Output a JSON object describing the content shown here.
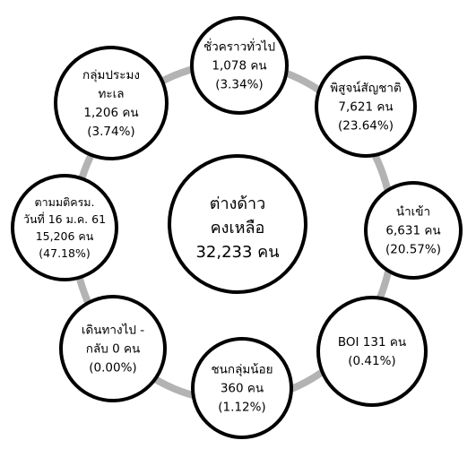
{
  "center": {
    "lines": [
      "ต่างด้าว",
      "คงเหลือ",
      "32,233 คน"
    ]
  },
  "nodes": [
    {
      "id": "temporary",
      "lines": [
        "ชั่วคราวทั่วไป",
        "1,078 คน",
        "(3.34%)"
      ]
    },
    {
      "id": "nationality-verification",
      "lines": [
        "พิสูจน์สัญชาติ",
        "7,621 คน",
        "(23.64%)"
      ]
    },
    {
      "id": "imported",
      "lines": [
        "นำเข้า",
        "6,631 คน",
        "(20.57%)"
      ]
    },
    {
      "id": "boi",
      "lines": [
        "BOI 131 คน",
        "(0.41%)"
      ]
    },
    {
      "id": "minority",
      "lines": [
        "ชนกลุ่มน้อย",
        "360 คน",
        "(1.12%)"
      ]
    },
    {
      "id": "border-crossing",
      "lines": [
        "เดินทางไป -",
        "กลับ 0 คน",
        "(0.00%)"
      ]
    },
    {
      "id": "cabinet-resolution",
      "lines": [
        "ตามมติครม.",
        "วันที่ 16 ม.ค. 61",
        "15,206 คน",
        "(47.18%)"
      ]
    },
    {
      "id": "fishery",
      "lines": [
        "กลุ่มประมง",
        "ทะเล",
        "1,206 คน",
        "(3.74%)"
      ]
    }
  ],
  "colors": {
    "ring": "#b3b3b3",
    "stroke": "#000000",
    "fill": "#ffffff"
  }
}
